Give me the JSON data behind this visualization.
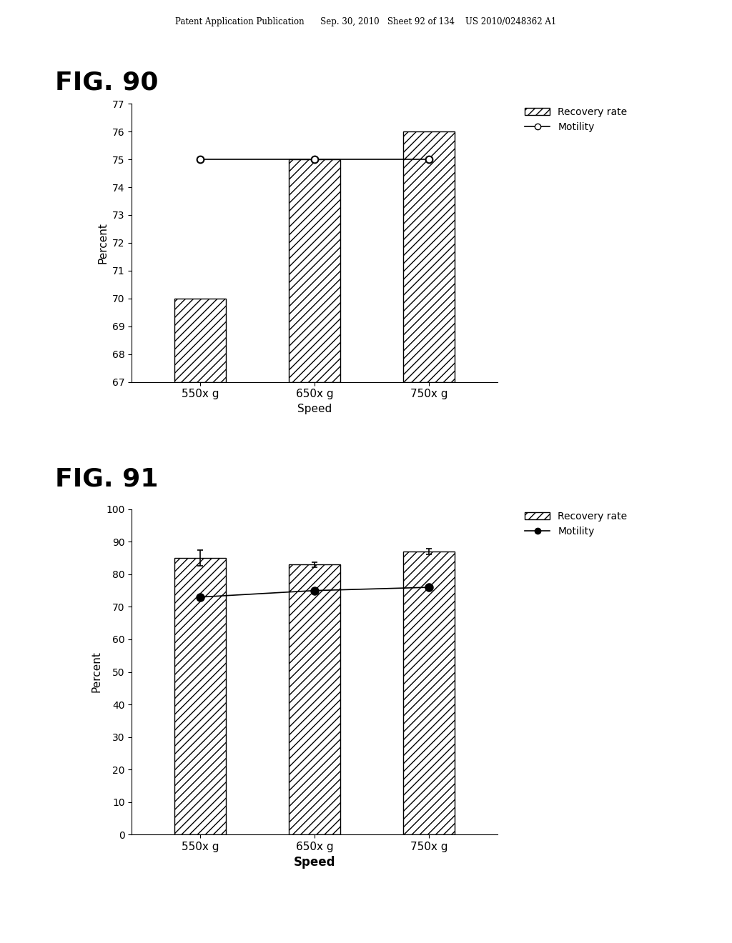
{
  "fig90": {
    "title": "FIG. 90",
    "categories": [
      "550x g",
      "650x g",
      "750x g"
    ],
    "bar_values": [
      70,
      75,
      76
    ],
    "motility_values": [
      75,
      75,
      75
    ],
    "ylim": [
      67,
      77
    ],
    "yticks": [
      67,
      68,
      69,
      70,
      71,
      72,
      73,
      74,
      75,
      76,
      77
    ],
    "ylabel": "Percent",
    "xlabel": "Speed",
    "legend_bar": "Recovery rate",
    "legend_line": "Motility",
    "hatch": "///"
  },
  "fig91": {
    "title": "FIG. 91",
    "categories": [
      "550x g",
      "650x g",
      "750x g"
    ],
    "bar_values": [
      85,
      83,
      87
    ],
    "bar_errors": [
      2.5,
      0.8,
      0.8
    ],
    "motility_values": [
      73,
      75,
      76
    ],
    "ylim": [
      0,
      100
    ],
    "yticks": [
      0,
      10,
      20,
      30,
      40,
      50,
      60,
      70,
      80,
      90,
      100
    ],
    "ylabel": "Percent",
    "xlabel": "Speed",
    "legend_bar": "Recovery rate",
    "legend_line": "Motility",
    "hatch": "///"
  },
  "header": "Patent Application Publication      Sep. 30, 2010   Sheet 92 of 134    US 2010/0248362 A1",
  "background_color": "#ffffff",
  "bar_color": "#ffffff",
  "bar_edge_color": "#000000",
  "title_fontsize": 26,
  "axis_label_fontsize": 11,
  "tick_fontsize": 10,
  "legend_fontsize": 10,
  "bar_width": 0.45
}
